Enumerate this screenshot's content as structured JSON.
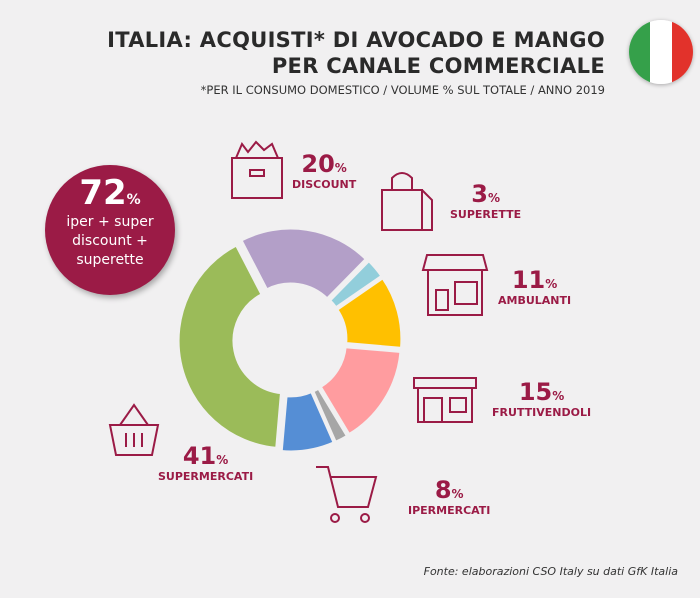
{
  "header": {
    "title_line1": "ITALIA: ACQUISTI* DI AVOCADO E MANGO",
    "title_line2": "PER CANALE COMMERCIALE",
    "subtitle": "*PER IL CONSUMO DOMESTICO / VOLUME % SUL TOTALE / ANNO 2019"
  },
  "flag": {
    "colors": [
      "#35a04a",
      "#ffffff",
      "#e2322b"
    ]
  },
  "highlight": {
    "value": "72",
    "unit": "%",
    "text_line1": "iper + super",
    "text_line2": "discount +",
    "text_line3": "superette",
    "color": "#9b1b46"
  },
  "source": "Fonte: elaborazioni CSO Italy su dati GfK Italia",
  "chart_data": {
    "type": "pie",
    "subtype": "donut",
    "unit": "%",
    "categories": [
      "DISCOUNT",
      "SUPERETTE",
      "AMBULANTI",
      "FRUTTIVENDOLI",
      "",
      "IPERMERCATI",
      "SUPERMERCATI"
    ],
    "values": [
      20,
      3,
      11,
      15,
      2,
      8,
      41
    ],
    "colors": [
      "#b39fc8",
      "#92cedb",
      "#ffc000",
      "#ff9c9f",
      "#a6a6a6",
      "#558ed5",
      "#9bbb59"
    ],
    "labels": [
      {
        "value": "20",
        "name": "DISCOUNT",
        "icon": "grocery-bag-icon"
      },
      {
        "value": "3",
        "name": "SUPERETTE",
        "icon": "shopping-bag-icon"
      },
      {
        "value": "11",
        "name": "AMBULANTI",
        "icon": "market-stall-icon"
      },
      {
        "value": "15",
        "name": "FRUTTIVENDOLI",
        "icon": "shop-icon"
      },
      {
        "value": "8",
        "name": "IPERMERCATI",
        "icon": "shopping-cart-icon"
      },
      {
        "value": "41",
        "name": "SUPERMERCATI",
        "icon": "basket-icon"
      }
    ]
  }
}
